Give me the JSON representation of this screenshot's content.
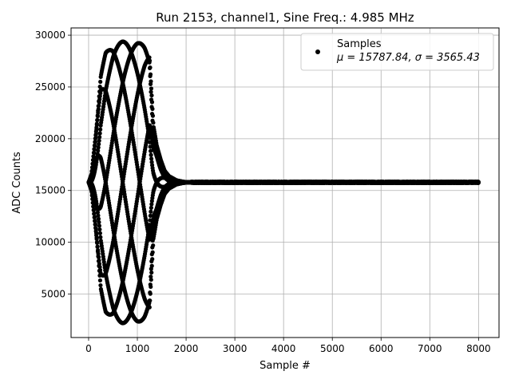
{
  "chart_data": {
    "type": "scatter",
    "title": "Run 2153, channel1, Sine Freq.: 4.985 MHz",
    "xlabel": "Sample #",
    "ylabel": "ADC Counts",
    "xlim": [
      -360,
      8420
    ],
    "ylim": [
      800,
      30700
    ],
    "xticks": [
      0,
      1000,
      2000,
      3000,
      4000,
      5000,
      6000,
      7000,
      8000
    ],
    "yticks": [
      5000,
      10000,
      15000,
      20000,
      25000,
      30000
    ],
    "grid": true,
    "legend": {
      "placement": "top-right",
      "entries": [
        {
          "label": "Samples",
          "stats": "μ = 15787.84, σ = 3565.43",
          "marker": "circle",
          "color": "#000000"
        }
      ]
    },
    "series": [
      {
        "name": "Samples",
        "color": "#000000",
        "marker": "circle",
        "baseline": 15787.84,
        "burst": {
          "envelope": [
            [
              0,
              0
            ],
            [
              60,
              800
            ],
            [
              150,
              5000
            ],
            [
              250,
              10500
            ],
            [
              350,
              12500
            ],
            [
              500,
              13400
            ],
            [
              700,
              13600
            ],
            [
              1000,
              13500
            ],
            [
              1150,
              13300
            ],
            [
              1250,
              12800
            ],
            [
              1290,
              9000
            ],
            [
              1330,
              5500
            ],
            [
              1400,
              3500
            ],
            [
              1480,
              2200
            ],
            [
              1560,
              1200
            ],
            [
              1650,
              600
            ],
            [
              1800,
              200
            ],
            [
              1950,
              50
            ],
            [
              2100,
              0
            ]
          ],
          "phases_deg": [
            0,
            45,
            90,
            135,
            180,
            225,
            270,
            315
          ],
          "cycle_samples": 2800
        },
        "steady_noise": 60,
        "x_range": [
          0,
          8000
        ],
        "count": 8000
      }
    ]
  }
}
